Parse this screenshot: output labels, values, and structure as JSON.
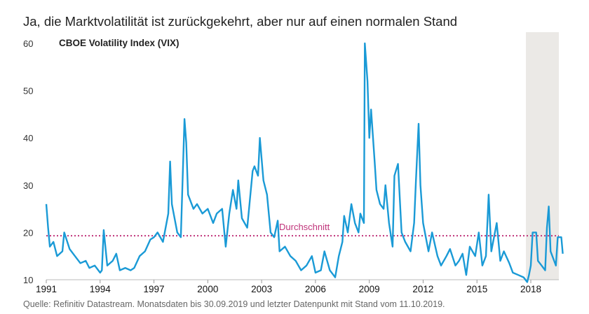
{
  "title": "Ja, die Marktvolatilität ist zurückgekehrt, aber nur auf einen normalen Stand",
  "source": "Quelle: Refinitiv Datastream. Monatsdaten bis 30.09.2019 und letzter Datenpunkt mit Stand vom 11.10.2019.",
  "chart_data": {
    "type": "line",
    "title": "Ja, die Marktvolatilität ist zurückgekehrt, aber nur auf einen normalen Stand",
    "ylabel": "CBOE Volatility Index (VIX)",
    "xlabel": "",
    "xlim": [
      1991,
      2019.8
    ],
    "ylim": [
      10,
      60
    ],
    "xticks": [
      "1991",
      "1994",
      "1997",
      "2000",
      "2003",
      "2006",
      "2009",
      "2012",
      "2015",
      "2018"
    ],
    "yticks": [
      "10",
      "20",
      "30",
      "40",
      "50",
      "60"
    ],
    "grid": false,
    "colors": {
      "line": "#1a9ad6",
      "average": "#c0337a",
      "shade": "#ebe9e6"
    },
    "shaded_region": [
      2018,
      2019.8
    ],
    "average": {
      "label": "Durchschnitt",
      "value": 19.3
    },
    "series": [
      {
        "x": [
          1991.0,
          1991.1,
          1991.2,
          1991.4,
          1991.6,
          1991.9,
          1992.0,
          1992.3,
          1992.6,
          1992.9,
          1993.2,
          1993.4,
          1993.7,
          1994.0,
          1994.1,
          1994.2,
          1994.4,
          1994.7,
          1994.9,
          1995.1,
          1995.4,
          1995.7,
          1995.9,
          1996.2,
          1996.5,
          1996.8,
          1997.0,
          1997.2,
          1997.5,
          1997.8,
          1997.9,
          1998.0,
          1998.3,
          1998.5,
          1998.7,
          1998.8,
          1998.9,
          1999.2,
          1999.4,
          1999.7,
          2000.0,
          2000.3,
          2000.5,
          2000.8,
          2001.0,
          2001.2,
          2001.4,
          2001.6,
          2001.7,
          2001.9,
          2002.2,
          2002.5,
          2002.6,
          2002.8,
          2002.9,
          2003.1,
          2003.3,
          2003.5,
          2003.7,
          2003.9,
          2004.0,
          2004.3,
          2004.6,
          2004.9,
          2005.2,
          2005.5,
          2005.8,
          2006.0,
          2006.3,
          2006.5,
          2006.8,
          2007.0,
          2007.1,
          2007.3,
          2007.5,
          2007.6,
          2007.8,
          2007.9,
          2008.0,
          2008.2,
          2008.4,
          2008.5,
          2008.7,
          2008.75,
          2008.9,
          2009.0,
          2009.1,
          2009.3,
          2009.4,
          2009.6,
          2009.8,
          2009.9,
          2010.1,
          2010.3,
          2010.4,
          2010.6,
          2010.8,
          2011.0,
          2011.3,
          2011.5,
          2011.6,
          2011.75,
          2011.85,
          2012.0,
          2012.3,
          2012.5,
          2012.8,
          2013.0,
          2013.3,
          2013.5,
          2013.8,
          2014.0,
          2014.2,
          2014.4,
          2014.6,
          2014.9,
          2015.1,
          2015.3,
          2015.5,
          2015.65,
          2015.8,
          2016.1,
          2016.3,
          2016.5,
          2016.8,
          2017.0,
          2017.3,
          2017.6,
          2017.8,
          2017.9,
          2018.0,
          2018.1,
          2018.3,
          2018.4,
          2018.6,
          2018.8,
          2018.9,
          2019.0,
          2019.1,
          2019.3,
          2019.4,
          2019.5,
          2019.7,
          2019.78
        ],
        "values": [
          26,
          21,
          17,
          18,
          15,
          16,
          20,
          16.5,
          15,
          13.5,
          14,
          12.5,
          13,
          11.5,
          12,
          20.5,
          13,
          14,
          15.5,
          12,
          12.5,
          12,
          12.5,
          15,
          16,
          18.5,
          19,
          20,
          18,
          24,
          35,
          26,
          20,
          19,
          44,
          39,
          28,
          25,
          26,
          24,
          25,
          22,
          24,
          25,
          17,
          24,
          29,
          25,
          31,
          23,
          21,
          33,
          34,
          32,
          40,
          31,
          28,
          20,
          19,
          22.5,
          16,
          17,
          15,
          14,
          12,
          13,
          15,
          11.5,
          12,
          16,
          12,
          11,
          10.5,
          15,
          18,
          23.5,
          20,
          23,
          26,
          22,
          20,
          24,
          22,
          60,
          52,
          40,
          46,
          35,
          29,
          26,
          25,
          30,
          22,
          17,
          32,
          34.5,
          20,
          18,
          16,
          22,
          31,
          43,
          30,
          22,
          16,
          20,
          15,
          13,
          15,
          16.5,
          13,
          14,
          15.5,
          11,
          17,
          15,
          20,
          13,
          15,
          28,
          16,
          22,
          14,
          16,
          13.5,
          11.5,
          11,
          10.5,
          9.5,
          11,
          13,
          20,
          20,
          14,
          13,
          12,
          21,
          25.5,
          16,
          14,
          13,
          19,
          19,
          15.5
        ]
      }
    ]
  }
}
